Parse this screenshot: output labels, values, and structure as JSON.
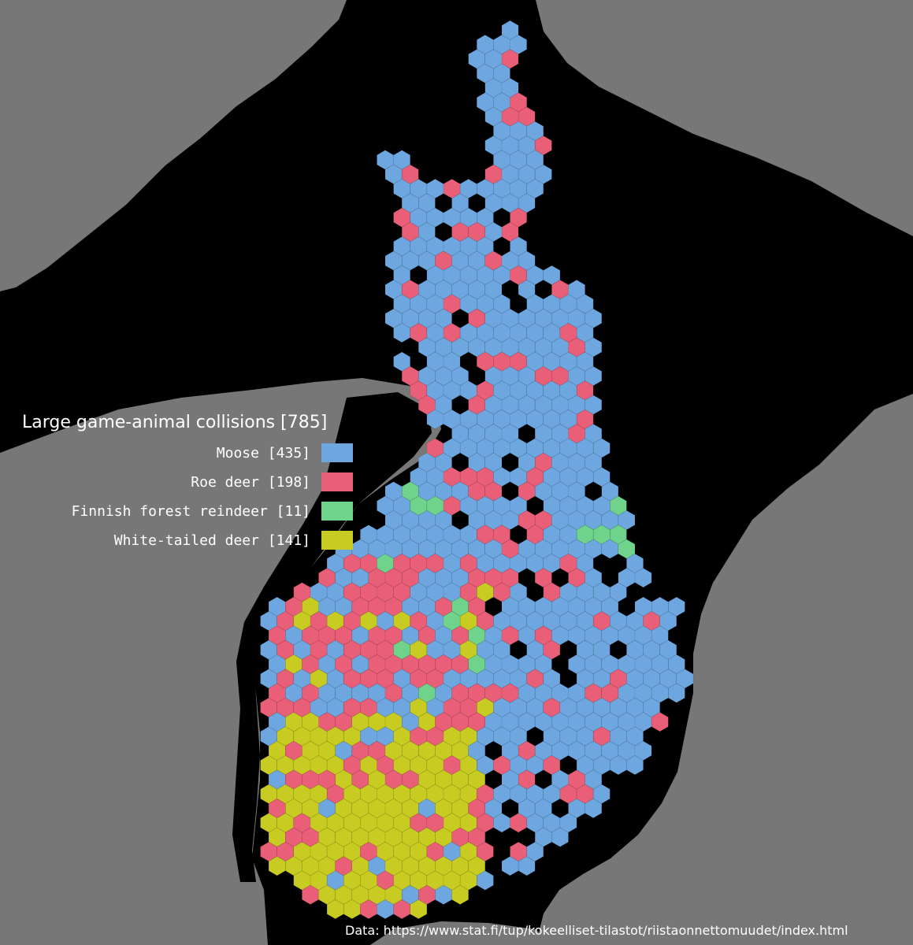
{
  "legend": {
    "title": "Large game-animal collisions [785]",
    "items": [
      {
        "label": "Moose [435]",
        "color": "#6ea7df"
      },
      {
        "label": "Roe deer [198]",
        "color": "#e95f78"
      },
      {
        "label": "Finnish forest reindeer [11]",
        "color": "#6fd38c"
      },
      {
        "label": "White-tailed deer [141]",
        "color": "#c8cc22"
      }
    ]
  },
  "source": "Data: https://www.stat.fi/tup/kokeelliset-tilastot/riistaonnettomuudet/index.html",
  "colors": {
    "background_sea": "#000000",
    "land_neighbours": "#777777",
    "moose": "#6ea7df",
    "roe_deer": "#e95f78",
    "reindeer": "#6fd38c",
    "white_tailed_deer": "#c8cc22"
  }
}
